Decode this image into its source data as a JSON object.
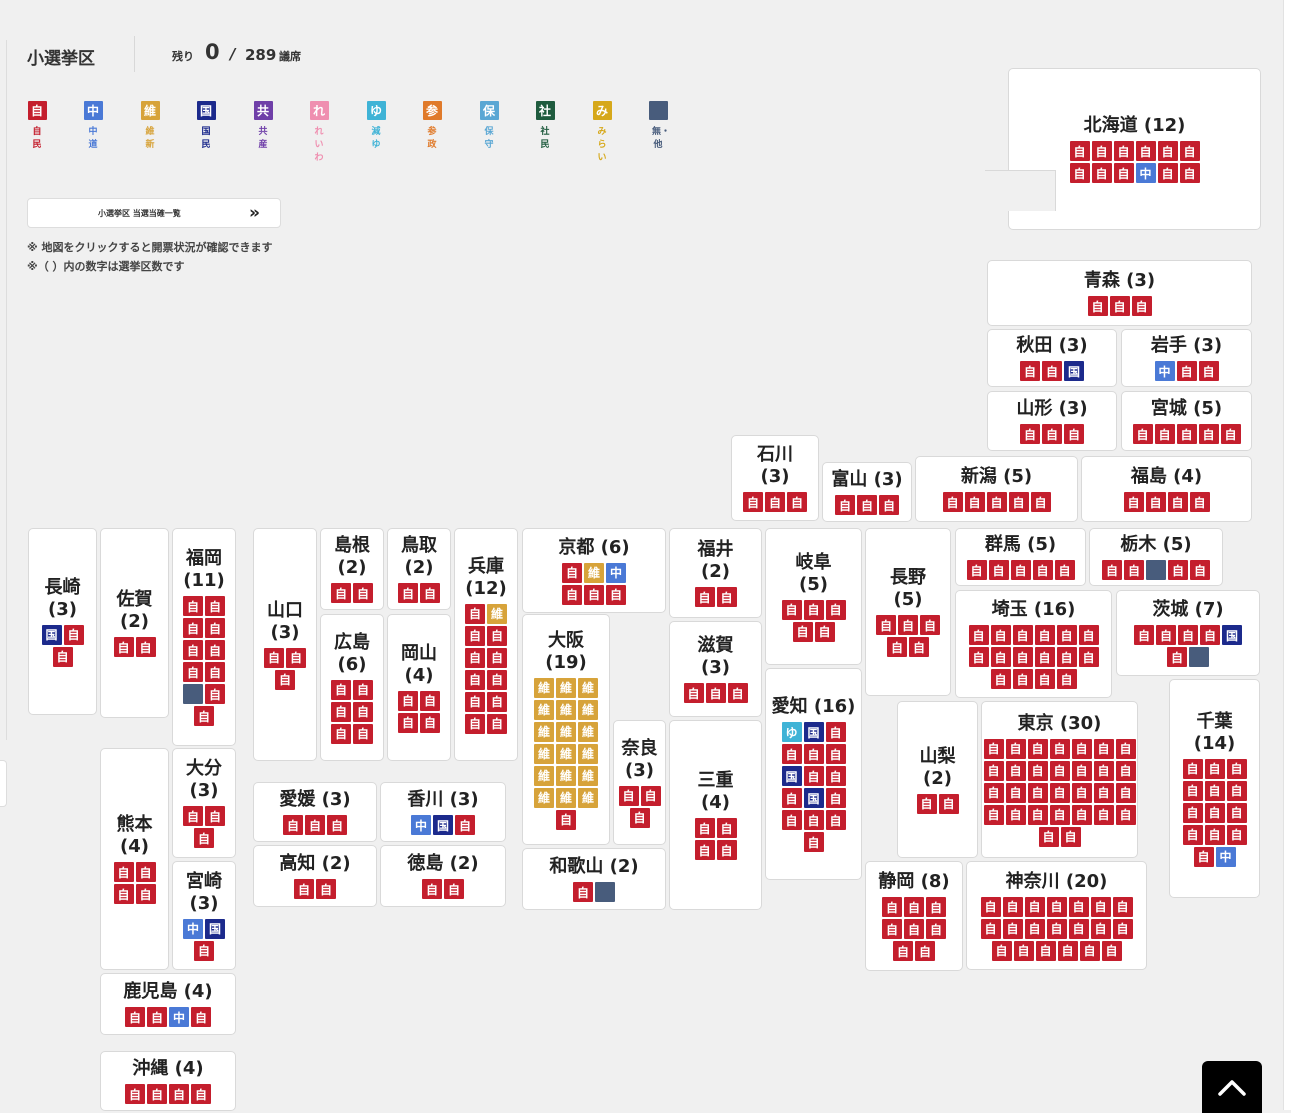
{
  "header": {
    "title": "小選挙区",
    "remaining_label": "残り",
    "remaining_value": "0",
    "slash": "/",
    "total_seats": "289",
    "unit": "議席"
  },
  "legend": [
    {
      "key": "jimin",
      "char": "自",
      "name": "自民",
      "color": "#c41e2d",
      "text_color": "#c41e2d"
    },
    {
      "key": "chudo",
      "char": "中",
      "name": "中道",
      "color": "#4a79d6",
      "text_color": "#4a79d6"
    },
    {
      "key": "ishin",
      "char": "維",
      "name": "維新",
      "color": "#d7a33a",
      "text_color": "#d7a33a"
    },
    {
      "key": "kokumin",
      "char": "国",
      "name": "国民",
      "color": "#1c2a8c",
      "text_color": "#1c2a8c"
    },
    {
      "key": "kyosan",
      "char": "共",
      "name": "共産",
      "color": "#6f3fa8",
      "text_color": "#6f3fa8"
    },
    {
      "key": "reiwa",
      "char": "れ",
      "name": "れいわ",
      "color": "#ef8fb0",
      "text_color": "#ef8fb0"
    },
    {
      "key": "genzei",
      "char": "ゆ",
      "name": "減ゆ",
      "color": "#3fb3d6",
      "text_color": "#3fb3d6"
    },
    {
      "key": "sansei",
      "char": "参",
      "name": "参政",
      "color": "#e07a2a",
      "text_color": "#e07a2a"
    },
    {
      "key": "hoshu",
      "char": "保",
      "name": "保守",
      "color": "#5aa7d4",
      "text_color": "#5aa7d4"
    },
    {
      "key": "shamin",
      "char": "社",
      "name": "社民",
      "color": "#1f5b3e",
      "text_color": "#1f5b3e"
    },
    {
      "key": "mirai",
      "char": "み",
      "name": "みらい",
      "color": "#d6a81a",
      "text_color": "#d6a81a"
    },
    {
      "key": "mushozoku",
      "char": "",
      "name": "無・他",
      "color": "#485c7c",
      "text_color": "#485c7c"
    }
  ],
  "list_button": {
    "label": "小選挙区 当選当確一覧"
  },
  "notes": [
    "※ 地図をクリックすると開票状況が確認できます",
    "※（ ）内の数字は選挙区数です"
  ],
  "prefectures": [
    {
      "id": "hokkaido",
      "name": "北海道 (12)",
      "seats": [
        "自",
        "自",
        "自",
        "自",
        "自",
        "自",
        "自",
        "自",
        "自",
        "中",
        "自",
        "自"
      ]
    },
    {
      "id": "aomori",
      "name": "青森 (3)",
      "seats": [
        "自",
        "自",
        "自"
      ]
    },
    {
      "id": "akita",
      "name": "秋田 (3)",
      "seats": [
        "自",
        "自",
        "国"
      ]
    },
    {
      "id": "iwate",
      "name": "岩手 (3)",
      "seats": [
        "中",
        "自",
        "自"
      ]
    },
    {
      "id": "yamagata",
      "name": "山形 (3)",
      "seats": [
        "自",
        "自",
        "自"
      ]
    },
    {
      "id": "miyagi",
      "name": "宮城 (5)",
      "seats": [
        "自",
        "自",
        "自",
        "自",
        "自"
      ]
    },
    {
      "id": "ishikawa",
      "name": "石川\n(3)",
      "seats": [
        "自",
        "自",
        "自"
      ]
    },
    {
      "id": "toyama",
      "name": "富山 (3)",
      "seats": [
        "自",
        "自",
        "自"
      ]
    },
    {
      "id": "niigata",
      "name": "新潟 (5)",
      "seats": [
        "自",
        "自",
        "自",
        "自",
        "自"
      ]
    },
    {
      "id": "fukushima",
      "name": "福島 (4)",
      "seats": [
        "自",
        "自",
        "自",
        "自"
      ]
    },
    {
      "id": "nagasaki",
      "name": "長崎\n(3)",
      "seats": [
        "国",
        "自",
        "自"
      ]
    },
    {
      "id": "saga",
      "name": "佐賀\n(2)",
      "seats": [
        "自",
        "自"
      ]
    },
    {
      "id": "fukuoka",
      "name": "福岡\n(11)",
      "seats": [
        "自",
        "自",
        "自",
        "自",
        "自",
        "自",
        "自",
        "自",
        "無",
        "自",
        "自"
      ]
    },
    {
      "id": "yamaguchi",
      "name": "山口\n(3)",
      "seats": [
        "自",
        "自",
        "自"
      ]
    },
    {
      "id": "shimane",
      "name": "島根\n(2)",
      "seats": [
        "自",
        "自"
      ]
    },
    {
      "id": "tottori",
      "name": "鳥取\n(2)",
      "seats": [
        "自",
        "自"
      ]
    },
    {
      "id": "hyogo",
      "name": "兵庫\n(12)",
      "seats": [
        "自",
        "維",
        "自",
        "自",
        "自",
        "自",
        "自",
        "自",
        "自",
        "自",
        "自",
        "自"
      ]
    },
    {
      "id": "kyoto",
      "name": "京都 (6)",
      "seats": [
        "自",
        "維",
        "中",
        "自",
        "自",
        "自"
      ]
    },
    {
      "id": "fukui",
      "name": "福井\n(2)",
      "seats": [
        "自",
        "自"
      ]
    },
    {
      "id": "gifu",
      "name": "岐阜\n(5)",
      "seats": [
        "自",
        "自",
        "自",
        "自",
        "自"
      ]
    },
    {
      "id": "nagano",
      "name": "長野\n(5)",
      "seats": [
        "自",
        "自",
        "自",
        "自",
        "自"
      ]
    },
    {
      "id": "gunma",
      "name": "群馬 (5)",
      "seats": [
        "自",
        "自",
        "自",
        "自",
        "自"
      ]
    },
    {
      "id": "tochigi",
      "name": "栃木 (5)",
      "seats": [
        "自",
        "自",
        "無",
        "自",
        "自"
      ]
    },
    {
      "id": "hiroshima",
      "name": "広島\n(6)",
      "seats": [
        "自",
        "自",
        "自",
        "自",
        "自",
        "自"
      ]
    },
    {
      "id": "okayama",
      "name": "岡山\n(4)",
      "seats": [
        "自",
        "自",
        "自",
        "自"
      ]
    },
    {
      "id": "osaka",
      "name": "大阪\n(19)",
      "seats": [
        "維",
        "維",
        "維",
        "維",
        "維",
        "維",
        "維",
        "維",
        "維",
        "維",
        "維",
        "維",
        "維",
        "維",
        "維",
        "維",
        "維",
        "維",
        "自"
      ]
    },
    {
      "id": "shiga",
      "name": "滋賀\n(3)",
      "seats": [
        "自",
        "自",
        "自"
      ]
    },
    {
      "id": "saitama",
      "name": "埼玉 (16)",
      "seats": [
        "自",
        "自",
        "自",
        "自",
        "自",
        "自",
        "自",
        "自",
        "自",
        "自",
        "自",
        "自",
        "自",
        "自",
        "自",
        "自"
      ]
    },
    {
      "id": "ibaraki",
      "name": "茨城 (7)",
      "seats": [
        "自",
        "自",
        "自",
        "自",
        "国",
        "自",
        "無"
      ]
    },
    {
      "id": "aichi",
      "name": "愛知 (16)",
      "seats": [
        "ゆ",
        "国",
        "自",
        "自",
        "自",
        "自",
        "国",
        "自",
        "自",
        "自",
        "国",
        "自",
        "自",
        "自",
        "自",
        "自"
      ]
    },
    {
      "id": "chiba",
      "name": "千葉\n(14)",
      "seats": [
        "自",
        "自",
        "自",
        "自",
        "自",
        "自",
        "自",
        "自",
        "自",
        "自",
        "自",
        "自",
        "自",
        "中"
      ]
    },
    {
      "id": "tokyo",
      "name": "東京 (30)",
      "seats": [
        "自",
        "自",
        "自",
        "自",
        "自",
        "自",
        "自",
        "自",
        "自",
        "自",
        "自",
        "自",
        "自",
        "自",
        "自",
        "自",
        "自",
        "自",
        "自",
        "自",
        "自",
        "自",
        "自",
        "自",
        "自",
        "自",
        "自",
        "自",
        "自",
        "自"
      ]
    },
    {
      "id": "yamanashi",
      "name": "山梨\n(2)",
      "seats": [
        "自",
        "自"
      ]
    },
    {
      "id": "kumamoto",
      "name": "熊本\n(4)",
      "seats": [
        "自",
        "自",
        "自",
        "自"
      ]
    },
    {
      "id": "oita",
      "name": "大分\n(3)",
      "seats": [
        "自",
        "自",
        "自"
      ]
    },
    {
      "id": "miyazaki",
      "name": "宮崎\n(3)",
      "seats": [
        "中",
        "国",
        "自"
      ]
    },
    {
      "id": "ehime",
      "name": "愛媛 (3)",
      "seats": [
        "自",
        "自",
        "自"
      ]
    },
    {
      "id": "kagawa",
      "name": "香川 (3)",
      "seats": [
        "中",
        "国",
        "自"
      ]
    },
    {
      "id": "kochi",
      "name": "高知 (2)",
      "seats": [
        "自",
        "自"
      ]
    },
    {
      "id": "tokushima",
      "name": "徳島 (2)",
      "seats": [
        "自",
        "自"
      ]
    },
    {
      "id": "nara",
      "name": "奈良\n(3)",
      "seats": [
        "自",
        "自",
        "自"
      ]
    },
    {
      "id": "mie",
      "name": "三重\n(4)",
      "seats": [
        "自",
        "自",
        "自",
        "自"
      ]
    },
    {
      "id": "wakayama",
      "name": "和歌山 (2)",
      "seats": [
        "自",
        "無"
      ]
    },
    {
      "id": "shizuoka",
      "name": "静岡 (8)",
      "seats": [
        "自",
        "自",
        "自",
        "自",
        "自",
        "自",
        "自",
        "自"
      ]
    },
    {
      "id": "kanagawa",
      "name": "神奈川 (20)",
      "seats": [
        "自",
        "自",
        "自",
        "自",
        "自",
        "自",
        "自",
        "自",
        "自",
        "自",
        "自",
        "自",
        "自",
        "自",
        "自",
        "自",
        "自",
        "自",
        "自",
        "自"
      ]
    },
    {
      "id": "kagoshima",
      "name": "鹿児島 (4)",
      "seats": [
        "自",
        "自",
        "中",
        "自"
      ]
    },
    {
      "id": "okinawa",
      "name": "沖縄 (4)",
      "seats": [
        "自",
        "自",
        "自",
        "自"
      ]
    }
  ],
  "scroll_top_icon": "chevron-up-icon"
}
